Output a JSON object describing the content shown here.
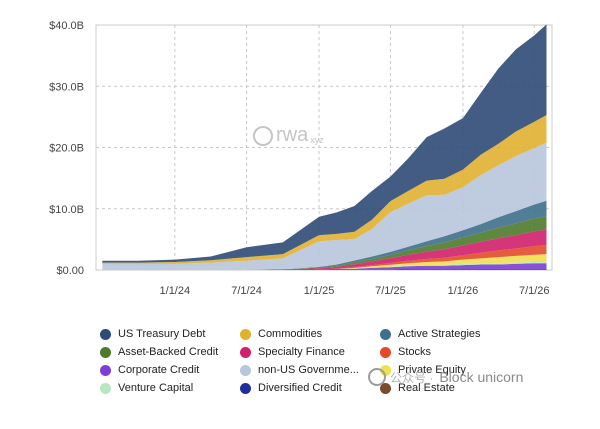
{
  "chart_data": {
    "type": "area",
    "stacked": true,
    "title": "",
    "xlabel": "",
    "ylabel": "",
    "ylim": [
      0,
      40
    ],
    "y_unit": "B",
    "y_ticks": [
      0,
      10,
      20,
      30,
      40
    ],
    "y_tick_labels": [
      "$0.00",
      "$10.0B",
      "$20.0B",
      "$30.0B",
      "$40.0B"
    ],
    "x_ticks": [
      "1/1/24",
      "7/1/24",
      "1/1/25",
      "7/1/25",
      "1/1/26",
      "7/1/26"
    ],
    "grid": true,
    "legend_position": "bottom",
    "x": [
      "2023-07-01",
      "2023-10-01",
      "2024-01-01",
      "2024-04-01",
      "2024-07-01",
      "2024-10-01",
      "2025-01-01",
      "2025-02-15",
      "2025-04-01",
      "2025-05-15",
      "2025-07-01",
      "2025-08-15",
      "2025-10-01",
      "2025-11-15",
      "2026-01-01",
      "2026-02-15",
      "2026-04-01",
      "2026-05-15",
      "2026-07-01",
      "2026-08-01"
    ],
    "series": [
      {
        "name": "Real Estate",
        "color": "#7a4a2a",
        "values": [
          0,
          0,
          0,
          0,
          0,
          0,
          0,
          0,
          0,
          0,
          0,
          0,
          0,
          0,
          0,
          0,
          0,
          0,
          0,
          0
        ]
      },
      {
        "name": "Diversified Credit",
        "color": "#1f2f9a",
        "values": [
          0,
          0,
          0,
          0,
          0,
          0,
          0,
          0,
          0,
          0.05,
          0.05,
          0.1,
          0.1,
          0.1,
          0.1,
          0.1,
          0.1,
          0.1,
          0.1,
          0.1
        ]
      },
      {
        "name": "Corporate Credit",
        "color": "#7b3fd4",
        "values": [
          0,
          0,
          0,
          0,
          0,
          0,
          0.1,
          0.2,
          0.2,
          0.3,
          0.4,
          0.5,
          0.6,
          0.6,
          0.7,
          0.8,
          0.8,
          0.9,
          1.0,
          1.0
        ]
      },
      {
        "name": "Venture Capital",
        "color": "#b8e6c0",
        "values": [
          0,
          0,
          0,
          0,
          0,
          0,
          0,
          0,
          0.05,
          0.05,
          0.1,
          0.1,
          0.1,
          0.1,
          0.2,
          0.2,
          0.2,
          0.2,
          0.2,
          0.2
        ]
      },
      {
        "name": "Private Equity",
        "color": "#f0e050",
        "values": [
          0,
          0,
          0,
          0,
          0,
          0,
          0,
          0,
          0.1,
          0.2,
          0.3,
          0.4,
          0.5,
          0.6,
          0.7,
          0.8,
          1.0,
          1.1,
          1.2,
          1.3
        ]
      },
      {
        "name": "Stocks",
        "color": "#e24a2a",
        "values": [
          0,
          0,
          0,
          0,
          0,
          0,
          0,
          0,
          0.1,
          0.2,
          0.3,
          0.4,
          0.5,
          0.6,
          0.7,
          0.9,
          1.1,
          1.2,
          1.4,
          1.5
        ]
      },
      {
        "name": "Specialty Finance",
        "color": "#d0206a",
        "values": [
          0,
          0,
          0,
          0,
          0,
          0.1,
          0.2,
          0.3,
          0.5,
          0.6,
          0.8,
          1.0,
          1.2,
          1.4,
          1.6,
          1.8,
          2.0,
          2.2,
          2.4,
          2.5
        ]
      },
      {
        "name": "Asset-Backed Credit",
        "color": "#4e7a2a",
        "values": [
          0,
          0,
          0,
          0,
          0,
          0,
          0.1,
          0.2,
          0.3,
          0.4,
          0.5,
          0.7,
          0.9,
          1.1,
          1.3,
          1.5,
          1.7,
          1.9,
          2.1,
          2.2
        ]
      },
      {
        "name": "Active Strategies",
        "color": "#3e6f8c",
        "values": [
          0,
          0,
          0,
          0,
          0,
          0,
          0.1,
          0.2,
          0.3,
          0.4,
          0.5,
          0.6,
          0.8,
          1.0,
          1.2,
          1.4,
          1.7,
          2.0,
          2.3,
          2.5
        ]
      },
      {
        "name": "non-US Government Debt",
        "color": "#b8c6dc",
        "values": [
          1.0,
          1.0,
          1.0,
          1.2,
          1.5,
          1.8,
          4.2,
          4.0,
          3.5,
          4.5,
          6.5,
          7.0,
          7.5,
          6.8,
          7.0,
          8.0,
          8.5,
          9.0,
          9.2,
          9.5
        ]
      },
      {
        "name": "Commodities",
        "color": "#e0b030",
        "values": [
          0.2,
          0.2,
          0.3,
          0.4,
          0.6,
          0.7,
          1.0,
          1.0,
          1.2,
          1.5,
          1.8,
          2.1,
          2.4,
          2.6,
          2.9,
          3.3,
          3.5,
          4.0,
          4.3,
          4.5
        ]
      },
      {
        "name": "US Treasury Debt",
        "color": "#2e4a75",
        "values": [
          0.3,
          0.3,
          0.4,
          0.6,
          1.6,
          1.9,
          3.0,
          3.5,
          4.2,
          4.7,
          4.0,
          5.3,
          7.1,
          8.2,
          8.4,
          10.1,
          12.3,
          13.4,
          14.1,
          14.8
        ]
      }
    ]
  },
  "legend": [
    {
      "label": "US Treasury Debt",
      "color": "#2e4a75"
    },
    {
      "label": "Commodities",
      "color": "#e0b030"
    },
    {
      "label": "Active Strategies",
      "color": "#3e6f8c"
    },
    {
      "label": "Asset-Backed Credit",
      "color": "#4e7a2a"
    },
    {
      "label": "Specialty Finance",
      "color": "#d0206a"
    },
    {
      "label": "Stocks",
      "color": "#e24a2a"
    },
    {
      "label": "Corporate Credit",
      "color": "#7b3fd4"
    },
    {
      "label": "non-US Governme...",
      "color": "#b8c6dc"
    },
    {
      "label": "Private Equity",
      "color": "#f0e050"
    },
    {
      "label": "Venture Capital",
      "color": "#b8e6c0"
    },
    {
      "label": "Diversified Credit",
      "color": "#1f2f9a"
    },
    {
      "label": "Real Estate",
      "color": "#7a4a2a"
    }
  ],
  "watermark": {
    "text": "rwa",
    "suffix": "xyz"
  },
  "brand": {
    "cn": "公众号 ·",
    "text": "Block unicorn"
  }
}
